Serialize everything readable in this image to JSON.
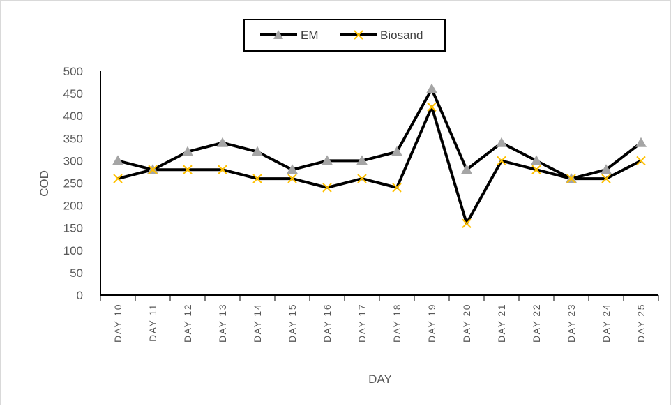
{
  "chart_data": {
    "type": "line",
    "categories": [
      "DAY 10",
      "DAY 11",
      "DAY 12",
      "DAY 13",
      "DAY 14",
      "DAY 15",
      "DAY 16",
      "DAY 17",
      "DAY 18",
      "DAY 19",
      "DAY 20",
      "DAY 21",
      "DAY 22",
      "DAY 23",
      "DAY 24",
      "DAY 25"
    ],
    "series": [
      {
        "name": "EM",
        "marker": "triangle",
        "line_color": "#000000",
        "marker_color": "#a5a5a5",
        "values": [
          300,
          280,
          320,
          340,
          320,
          280,
          300,
          300,
          320,
          460,
          280,
          340,
          300,
          260,
          280,
          340
        ]
      },
      {
        "name": "Biosand",
        "marker": "x",
        "line_color": "#000000",
        "marker_color": "#ffc000",
        "values": [
          260,
          280,
          280,
          280,
          260,
          260,
          240,
          260,
          240,
          420,
          160,
          300,
          280,
          260,
          260,
          300
        ]
      }
    ],
    "xlabel": "DAY",
    "ylabel": "COD",
    "ylim": [
      0,
      500
    ],
    "yticks": [
      "0",
      "50",
      "100",
      "150",
      "200",
      "250",
      "300",
      "350",
      "400",
      "450",
      "500"
    ],
    "grid": false,
    "legend_position": "top"
  }
}
